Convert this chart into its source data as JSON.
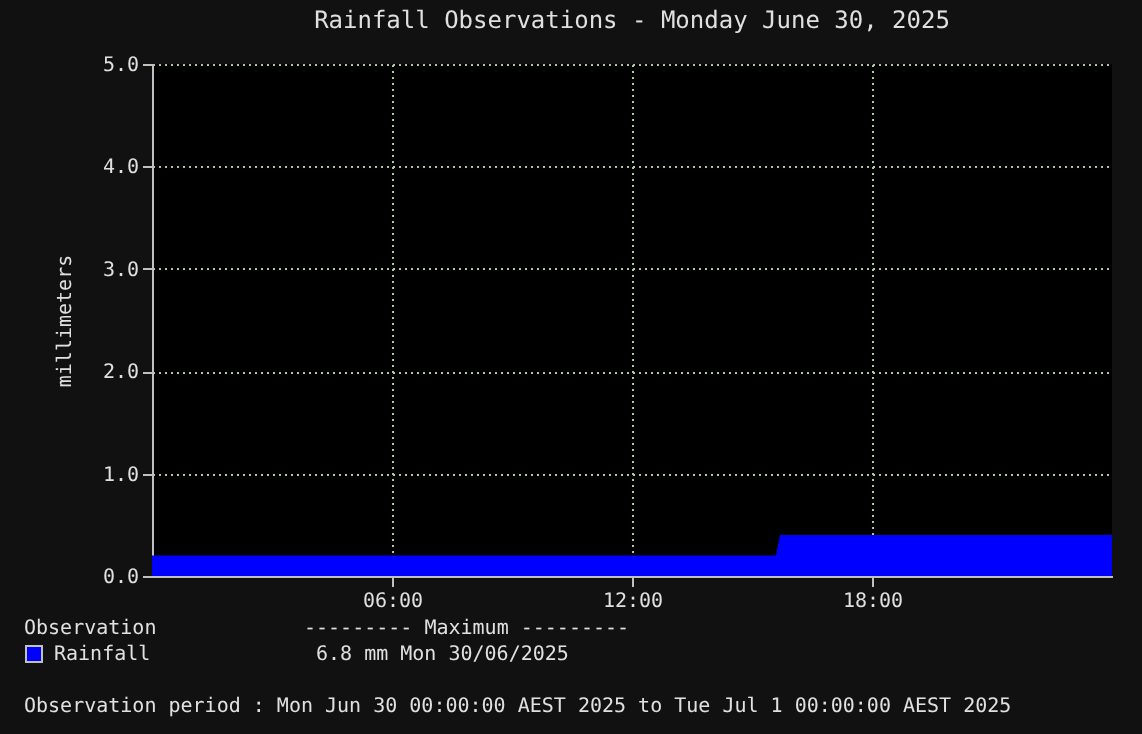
{
  "chart_data": {
    "type": "area",
    "title": "Rainfall Observations - Monday June 30, 2025",
    "ylabel": "millimeters",
    "legend_title": "Observation",
    "legend": "bottom",
    "annotations": [
      "--------- Maximum ---------",
      "6.8 mm  Mon 30/06/2025",
      "Observation period : Mon Jun 30 00:00:00 AEST 2025 to Tue Jul 1 00:00:00 AEST 2025"
    ],
    "xlim": [
      0,
      24
    ],
    "xticks": [
      {
        "value": 6,
        "label": "06:00"
      },
      {
        "value": 12,
        "label": "12:00"
      },
      {
        "value": 18,
        "label": "18:00"
      }
    ],
    "ylim": [
      0,
      5
    ],
    "yticks": [
      {
        "value": 0,
        "label": "0.0"
      },
      {
        "value": 1,
        "label": "1.0"
      },
      {
        "value": 2,
        "label": "2.0"
      },
      {
        "value": 3,
        "label": "3.0"
      },
      {
        "value": 4,
        "label": "4.0"
      },
      {
        "value": 5,
        "label": "5.0"
      }
    ],
    "grid": true,
    "series": [
      {
        "name": "Rainfall",
        "color": "#0000ff",
        "x": [
          0,
          15.6,
          15.7,
          24
        ],
        "values": [
          0.2,
          0.2,
          0.4,
          0.4
        ]
      }
    ]
  }
}
